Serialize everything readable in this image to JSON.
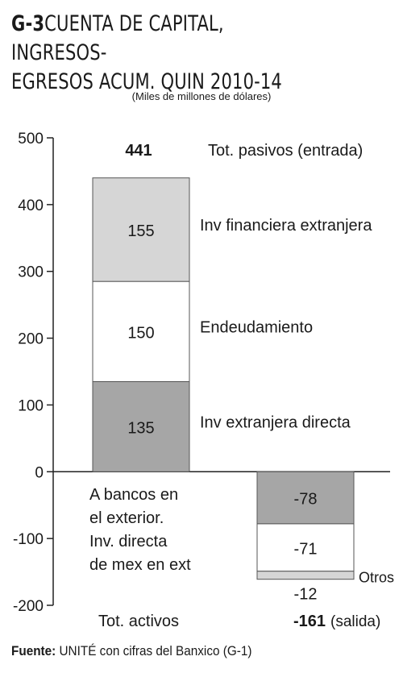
{
  "header": {
    "code": "G-3",
    "title_line1": "CUENTA DE CAPITAL, INGRESOS-",
    "title_line2": "EGRESOS ACUM. QUIN 2010-14",
    "subtitle": "(Miles de millones de dólares)"
  },
  "footer": {
    "source_label": "Fuente:",
    "source_text": "UNITÉ con cifras del Banxico (G-1)"
  },
  "chart_data": {
    "type": "bar",
    "stacked": true,
    "ylim": [
      -200,
      500
    ],
    "yticks": [
      500,
      400,
      300,
      200,
      100,
      0,
      -100,
      -200
    ],
    "categories": [
      "Tot. pasivos (entrada)",
      "Tot. activos"
    ],
    "series": [
      {
        "name": "Inv extranjera directa",
        "values": [
          135,
          null
        ],
        "color": "#a6a6a6"
      },
      {
        "name": "Endeudamiento",
        "values": [
          150,
          null
        ],
        "color": "#ffffff"
      },
      {
        "name": "Inv financiera extranjera",
        "values": [
          155,
          null
        ],
        "color": "#d6d6d6"
      },
      {
        "name": "A bancos en el exterior. Inv. directa de mex en ext",
        "values": [
          null,
          -78
        ],
        "color": "#a6a6a6"
      },
      {
        "name": "",
        "values": [
          null,
          -71
        ],
        "color": "#ffffff"
      },
      {
        "name": "Otros",
        "values": [
          null,
          -12
        ],
        "color": "#d6d6d6"
      }
    ],
    "totals": [
      {
        "value": "441",
        "label": "Tot. pasivos (entrada)"
      },
      {
        "value": "-161",
        "label": "(salida)"
      }
    ],
    "bottom_label": "Tot. activos",
    "annotation_lines": [
      "A bancos en",
      "el exterior.",
      "Inv. directa",
      "de mex en ext"
    ]
  }
}
